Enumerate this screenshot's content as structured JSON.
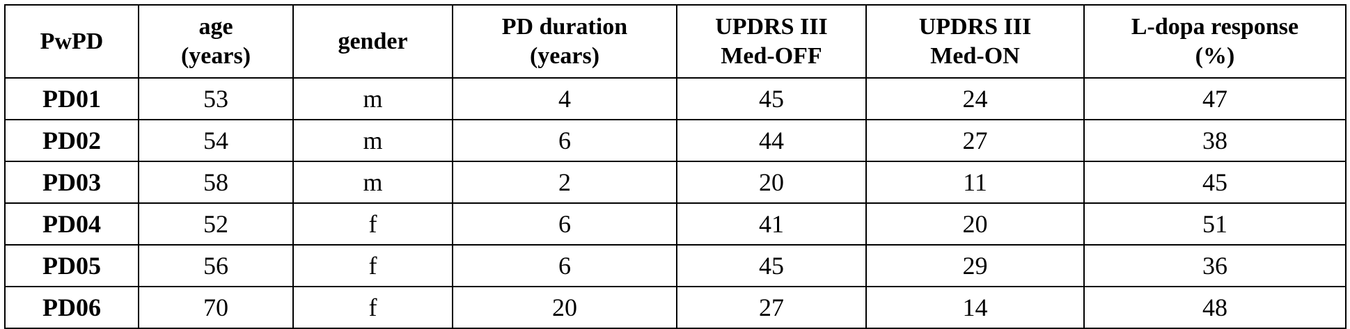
{
  "table": {
    "header": [
      [
        "PwPD"
      ],
      [
        "age",
        "(years)"
      ],
      [
        "gender"
      ],
      [
        "PD duration",
        "(years)"
      ],
      [
        "UPDRS III",
        "Med-OFF"
      ],
      [
        "UPDRS III",
        "Med-ON"
      ],
      [
        "L-dopa response",
        "(%)"
      ]
    ],
    "rows": [
      [
        "PD01",
        53,
        "m",
        4,
        45,
        24,
        47
      ],
      [
        "PD02",
        54,
        "m",
        6,
        44,
        27,
        38
      ],
      [
        "PD03",
        58,
        "m",
        2,
        20,
        11,
        45
      ],
      [
        "PD04",
        52,
        "f",
        6,
        41,
        20,
        51
      ],
      [
        "PD05",
        56,
        "f",
        6,
        45,
        29,
        36
      ],
      [
        "PD06",
        70,
        "f",
        20,
        27,
        14,
        48
      ]
    ]
  }
}
